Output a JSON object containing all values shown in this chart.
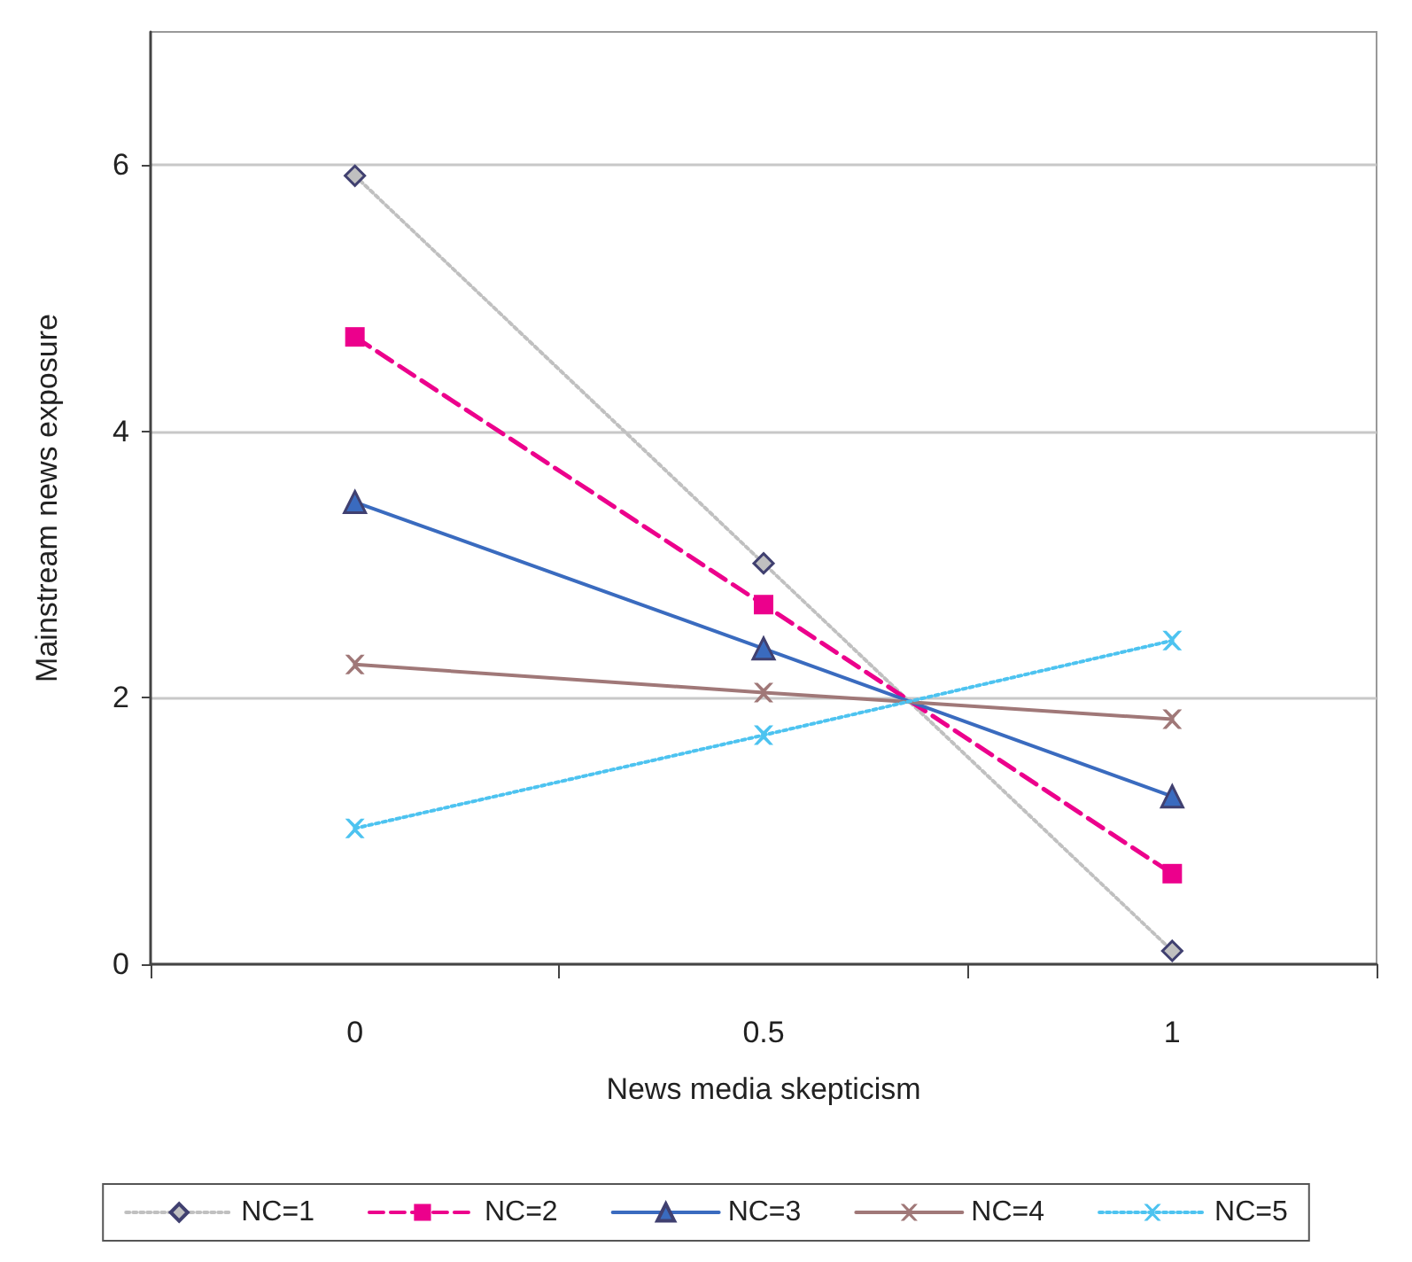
{
  "chart_data": {
    "type": "line",
    "xlabel": "News media skepticism",
    "ylabel": "Mainstream news exposure",
    "categories": [
      "0",
      "0.5",
      "1"
    ],
    "series": [
      {
        "name": "NC=1",
        "color": "#c0c0c0",
        "values": [
          5.92,
          3.01,
          0.1
        ],
        "marker": "diamond",
        "line_style": "dotted"
      },
      {
        "name": "NC=2",
        "color": "#ec008c",
        "values": [
          4.71,
          2.7,
          0.68
        ],
        "marker": "square",
        "line_style": "dashed"
      },
      {
        "name": "NC=3",
        "color": "#3a6bbf",
        "values": [
          3.47,
          2.37,
          1.26
        ],
        "marker": "triangle",
        "line_style": "solid"
      },
      {
        "name": "NC=4",
        "color": "#a07878",
        "values": [
          2.25,
          2.04,
          1.84
        ],
        "marker": "cross",
        "line_style": "solid"
      },
      {
        "name": "NC=5",
        "color": "#4dc3f0",
        "values": [
          1.02,
          1.72,
          2.43
        ],
        "marker": "cross",
        "line_style": "dotted"
      }
    ],
    "ylim": [
      0,
      7
    ],
    "yticks": [
      0,
      2,
      4,
      6
    ],
    "grid": "y",
    "legend": "bottom"
  }
}
